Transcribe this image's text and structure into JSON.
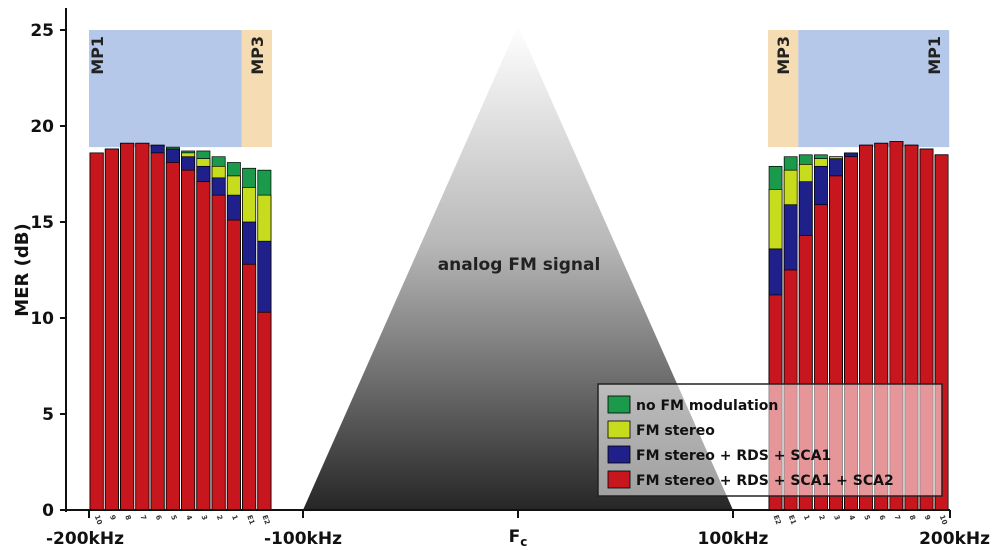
{
  "chart_data": {
    "type": "bar",
    "ylabel": "MER (dB)",
    "ylim": [
      0,
      25
    ],
    "yticks": [
      0,
      5,
      10,
      15,
      20,
      25
    ],
    "xticks": [
      "-200kHz",
      "-100kHz",
      "Fc",
      "100kHz",
      "200kHz"
    ],
    "center_label": "analog FM signal",
    "zones": {
      "mp1": "MP1",
      "mp3": "MP3"
    },
    "colors": {
      "no_fm_modulation": "#1a9a4a",
      "fm_stereo": "#c8dc1e",
      "fm_stereo_rds_sca1": "#20208a",
      "fm_stereo_rds_sca1_sca2": "#c8161e",
      "mp1_zone": "#b5c8ea",
      "mp3_zone": "#f5dcb2"
    },
    "legend": {
      "placement": "bottom-right",
      "entries": [
        {
          "key": "no_fm_modulation",
          "label": "no FM modulation"
        },
        {
          "key": "fm_stereo",
          "label": "FM stereo"
        },
        {
          "key": "fm_stereo_rds_sca1",
          "label": "FM stereo + RDS + SCA1"
        },
        {
          "key": "fm_stereo_rds_sca1_sca2",
          "label": "FM stereo + RDS + SCA1 + SCA2"
        }
      ]
    },
    "lower_sideband": {
      "bins": [
        "10",
        "9",
        "8",
        "7",
        "6",
        "5",
        "4",
        "3",
        "2",
        "1",
        "E1",
        "E2"
      ],
      "mp1_bins": 10,
      "mp3_bins": 2,
      "series": [
        {
          "key": "fm_stereo_rds_sca1_sca2",
          "values": [
            18.6,
            18.8,
            19.1,
            19.1,
            18.6,
            18.1,
            17.7,
            17.1,
            16.4,
            15.1,
            12.8,
            10.3
          ]
        },
        {
          "key": "fm_stereo_rds_sca1",
          "values": [
            18.6,
            18.8,
            19.1,
            19.1,
            19.0,
            18.8,
            18.4,
            17.9,
            17.3,
            16.4,
            15.0,
            14.0
          ]
        },
        {
          "key": "fm_stereo",
          "values": [
            18.6,
            18.8,
            19.1,
            19.1,
            19.0,
            18.8,
            18.6,
            18.3,
            17.9,
            17.4,
            16.8,
            16.4
          ]
        },
        {
          "key": "no_fm_modulation",
          "values": [
            18.6,
            18.8,
            19.1,
            19.1,
            19.0,
            18.9,
            18.7,
            18.7,
            18.4,
            18.1,
            17.8,
            17.7
          ]
        }
      ]
    },
    "upper_sideband": {
      "bins": [
        "E2",
        "E1",
        "1",
        "2",
        "3",
        "4",
        "5",
        "6",
        "7",
        "8",
        "9",
        "10"
      ],
      "mp1_bins": 10,
      "mp3_bins": 2,
      "series": [
        {
          "key": "fm_stereo_rds_sca1_sca2",
          "values": [
            11.2,
            12.5,
            14.3,
            15.9,
            17.4,
            18.4,
            19.0,
            19.1,
            19.2,
            19.0,
            18.8,
            18.5
          ]
        },
        {
          "key": "fm_stereo_rds_sca1",
          "values": [
            13.6,
            15.9,
            17.1,
            17.9,
            18.3,
            18.6,
            19.0,
            19.1,
            19.2,
            19.0,
            18.8,
            18.5
          ]
        },
        {
          "key": "fm_stereo",
          "values": [
            16.7,
            17.7,
            18.0,
            18.3,
            18.4,
            18.6,
            19.0,
            19.1,
            19.2,
            19.0,
            18.8,
            18.5
          ]
        },
        {
          "key": "no_fm_modulation",
          "values": [
            17.9,
            18.4,
            18.5,
            18.5,
            18.4,
            18.6,
            19.0,
            19.1,
            19.2,
            19.0,
            18.8,
            18.5
          ]
        }
      ]
    }
  }
}
